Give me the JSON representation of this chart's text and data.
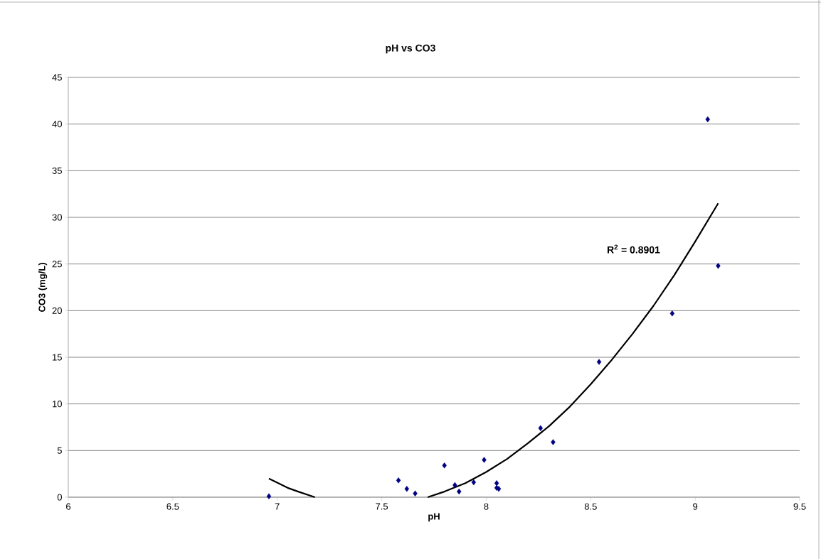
{
  "chart_data": {
    "type": "scatter",
    "title": "pH vs CO3",
    "xlabel": "pH",
    "ylabel": "CO3 (mg/L)",
    "xlim": [
      6,
      9.5
    ],
    "xticks": [
      6,
      6.5,
      7,
      7.5,
      8,
      8.5,
      9,
      9.5
    ],
    "ylim": [
      0,
      45
    ],
    "yticks": [
      0,
      5,
      10,
      15,
      20,
      25,
      30,
      35,
      40,
      45
    ],
    "grid": "y",
    "series": [
      {
        "marker": "diamond",
        "color": "#000080",
        "x": [
          6.96,
          7.58,
          7.62,
          7.66,
          7.8,
          7.85,
          7.87,
          7.94,
          7.99,
          8.05,
          8.05,
          8.06,
          8.26,
          8.32,
          8.54,
          8.89,
          9.06,
          9.11
        ],
        "values": [
          0.1,
          1.8,
          0.9,
          0.4,
          3.4,
          1.3,
          0.6,
          1.6,
          4.0,
          1.5,
          1.0,
          0.9,
          7.4,
          5.9,
          14.5,
          19.7,
          40.5,
          24.8
        ]
      },
      {
        "type": "line",
        "marker": "none",
        "color": "#000000",
        "x": [
          6.96,
          7.05,
          7.1,
          7.18,
          7.45,
          7.72,
          7.8,
          7.9,
          8.0,
          8.1,
          8.2,
          8.3,
          8.4,
          8.5,
          8.6,
          8.7,
          8.8,
          8.9,
          9.0,
          9.11
        ],
        "values": [
          2.0,
          1.0,
          0.6,
          0,
          null,
          0,
          0.6,
          1.5,
          2.7,
          4.1,
          5.8,
          7.6,
          9.7,
          12.1,
          14.7,
          17.5,
          20.5,
          23.8,
          27.4,
          31.5
        ]
      }
    ],
    "annotations": [
      "R$^{2}$ = 0.8901"
    ]
  }
}
